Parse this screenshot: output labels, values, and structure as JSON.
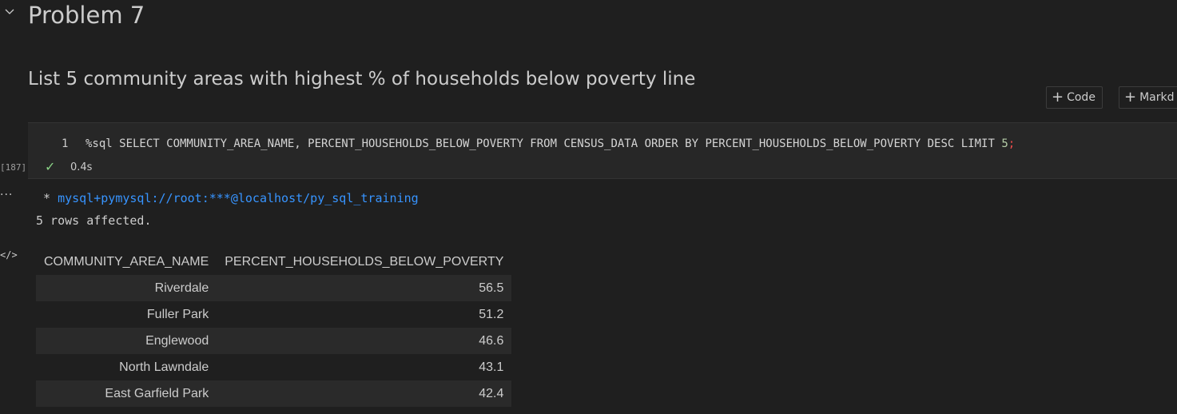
{
  "markdown": {
    "heading": "Problem 7",
    "description": "List 5 community areas with highest % of households below poverty line"
  },
  "toolbar": {
    "add_code_label": "Code",
    "add_markdown_label": "Markd"
  },
  "cell": {
    "execution_count": "[187]",
    "line_number": "1",
    "code": {
      "main": "%sql SELECT COMMUNITY_AREA_NAME, PERCENT_HOUSEHOLDS_BELOW_POVERTY FROM CENSUS_DATA ORDER BY PERCENT_HOUSEHOLDS_BELOW_POVERTY DESC LIMIT ",
      "limit_value": "5",
      "terminator": ";"
    },
    "status": "success",
    "duration": "0.4s"
  },
  "output": {
    "connection_prefix": " * ",
    "connection": "mysql+pymysql://root:***@localhost/py_sql_training",
    "rows_affected": "5 rows affected.",
    "table": {
      "columns": [
        "COMMUNITY_AREA_NAME",
        "PERCENT_HOUSEHOLDS_BELOW_POVERTY"
      ],
      "rows": [
        [
          "Riverdale",
          "56.5"
        ],
        [
          "Fuller Park",
          "51.2"
        ],
        [
          "Englewood",
          "46.6"
        ],
        [
          "North Lawndale",
          "43.1"
        ],
        [
          "East Garfield Park",
          "42.4"
        ]
      ]
    }
  },
  "icons": {
    "collapse": "chevron-down-icon",
    "add": "plus-icon",
    "status": "check-icon",
    "output_menu": "ellipsis-icon",
    "output_type": "code-icon"
  },
  "colors": {
    "background": "#1f1f1f",
    "cell_background": "#272727",
    "success": "#89d185",
    "link": "#3794ff"
  }
}
